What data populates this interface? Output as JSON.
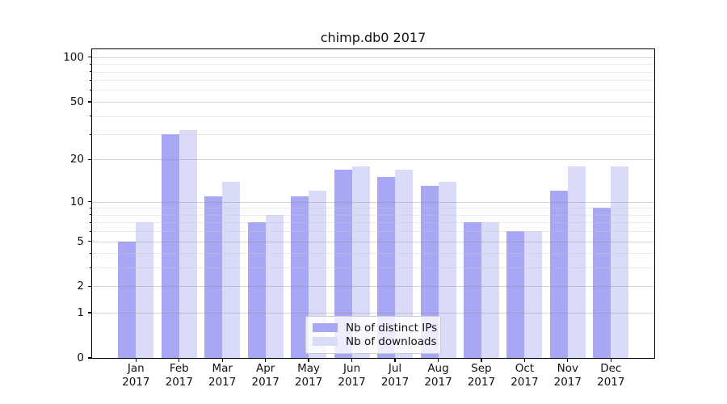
{
  "title": "chimp.db0 2017",
  "chart_data": {
    "type": "bar",
    "title": "chimp.db0 2017",
    "y_scale": "log1p",
    "categories": [
      "Jan 2017",
      "Feb 2017",
      "Mar 2017",
      "Apr 2017",
      "May 2017",
      "Jun 2017",
      "Jul 2017",
      "Aug 2017",
      "Sep 2017",
      "Oct 2017",
      "Nov 2017",
      "Dec 2017"
    ],
    "series": [
      {
        "name": "Nb of distinct IPs",
        "color": "#a7a7f6",
        "values": [
          5,
          30,
          11,
          7,
          11,
          17,
          15,
          13,
          7,
          6,
          12,
          9
        ]
      },
      {
        "name": "Nb of downloads",
        "color": "#dadaf9",
        "values": [
          7,
          32,
          14,
          8,
          12,
          18,
          17,
          14,
          7,
          6,
          18,
          18
        ]
      }
    ],
    "yticks": [
      0,
      1,
      2,
      5,
      10,
      20,
      50,
      100
    ],
    "minor_yticks": [
      3,
      4,
      6,
      7,
      8,
      9,
      30,
      40,
      60,
      70,
      80,
      90
    ],
    "ylim": [
      0,
      113
    ],
    "xlabel": "",
    "ylabel": "",
    "grid": true,
    "legend_position": "lower center"
  },
  "colors": {
    "major_grid": "rgba(140,140,140,0.38)",
    "minor_grid": "rgba(200,200,200,0.38)",
    "spine": "#000000",
    "text": "#111111"
  }
}
